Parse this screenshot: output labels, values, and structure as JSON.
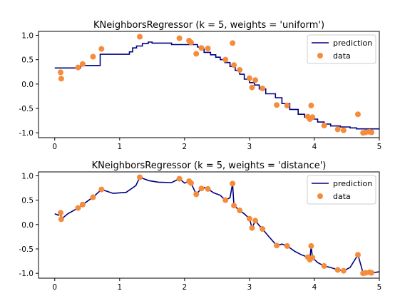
{
  "chart_data": [
    {
      "type": "line",
      "title": "KNeighborsRegressor (k = 5, weights = 'uniform')",
      "xlabel": "",
      "ylabel": "",
      "xlim": [
        -0.25,
        5.0
      ],
      "ylim": [
        -1.1,
        1.08
      ],
      "xticks": [
        "0",
        "1",
        "2",
        "3",
        "4",
        "5"
      ],
      "yticks": [
        "1.0",
        "0.5",
        "0.0",
        "-0.5",
        "-1.0"
      ],
      "grid": false,
      "legend": {
        "location": "top-right",
        "entries": [
          "prediction",
          "data"
        ]
      },
      "series": [
        {
          "name": "prediction",
          "kind": "line",
          "color": "#000080",
          "x": [
            0.0,
            0.4,
            0.4,
            0.7,
            0.7,
            1.15,
            1.15,
            1.2,
            1.2,
            1.26,
            1.26,
            1.35,
            1.35,
            1.44,
            1.44,
            1.5,
            1.5,
            1.8,
            1.8,
            2.2,
            2.2,
            2.25,
            2.25,
            2.3,
            2.3,
            2.4,
            2.4,
            2.48,
            2.48,
            2.55,
            2.55,
            2.62,
            2.62,
            2.7,
            2.7,
            2.78,
            2.78,
            2.85,
            2.85,
            2.92,
            2.92,
            3.0,
            3.0,
            3.08,
            3.08,
            3.15,
            3.15,
            3.25,
            3.25,
            3.4,
            3.4,
            3.5,
            3.5,
            3.62,
            3.62,
            3.75,
            3.75,
            3.85,
            3.85,
            3.95,
            3.95,
            4.05,
            4.05,
            4.15,
            4.15,
            4.25,
            4.25,
            4.4,
            4.4,
            4.55,
            4.55,
            4.65,
            4.65,
            5.0
          ],
          "y": [
            0.33,
            0.33,
            0.38,
            0.38,
            0.61,
            0.61,
            0.66,
            0.66,
            0.74,
            0.74,
            0.78,
            0.78,
            0.83,
            0.83,
            0.86,
            0.86,
            0.84,
            0.84,
            0.81,
            0.81,
            0.76,
            0.76,
            0.72,
            0.72,
            0.65,
            0.65,
            0.6,
            0.6,
            0.55,
            0.55,
            0.5,
            0.5,
            0.44,
            0.44,
            0.36,
            0.36,
            0.28,
            0.28,
            0.2,
            0.2,
            0.1,
            0.1,
            0.03,
            0.03,
            -0.02,
            -0.02,
            -0.1,
            -0.1,
            -0.2,
            -0.2,
            -0.28,
            -0.28,
            -0.4,
            -0.4,
            -0.52,
            -0.52,
            -0.62,
            -0.62,
            -0.68,
            -0.68,
            -0.72,
            -0.72,
            -0.78,
            -0.78,
            -0.82,
            -0.82,
            -0.86,
            -0.86,
            -0.88,
            -0.88,
            -0.9,
            -0.9,
            -0.92,
            -0.92
          ]
        },
        {
          "name": "data",
          "kind": "scatter",
          "color": "#f58c3c",
          "x": [
            0.09,
            0.1,
            0.36,
            0.43,
            0.59,
            0.72,
            1.31,
            1.92,
            2.07,
            2.1,
            2.18,
            2.26,
            2.36,
            2.63,
            2.74,
            2.76,
            2.85,
            3.0,
            3.04,
            3.09,
            3.2,
            3.42,
            3.58,
            3.9,
            3.93,
            3.95,
            3.97,
            4.15,
            4.36,
            4.45,
            4.67,
            4.75,
            4.79,
            4.85,
            4.88
          ],
          "y": [
            0.24,
            0.11,
            0.34,
            0.41,
            0.56,
            0.72,
            0.97,
            0.94,
            0.89,
            0.85,
            0.62,
            0.74,
            0.73,
            0.5,
            0.84,
            0.39,
            0.29,
            0.12,
            -0.07,
            0.08,
            -0.09,
            -0.43,
            -0.44,
            -0.67,
            -0.72,
            -0.44,
            -0.68,
            -0.85,
            -0.93,
            -0.95,
            -0.62,
            -1.0,
            -0.99,
            -0.98,
            -0.99
          ]
        }
      ]
    },
    {
      "type": "line",
      "title": "KNeighborsRegressor (k = 5, weights = 'distance')",
      "xlabel": "",
      "ylabel": "",
      "xlim": [
        -0.25,
        5.0
      ],
      "ylim": [
        -1.1,
        1.08
      ],
      "xticks": [
        "0",
        "1",
        "2",
        "3",
        "4",
        "5"
      ],
      "yticks": [
        "1.0",
        "0.5",
        "0.0",
        "-0.5",
        "-1.0"
      ],
      "grid": false,
      "legend": {
        "location": "top-right",
        "entries": [
          "prediction",
          "data"
        ]
      },
      "series": [
        {
          "name": "prediction",
          "kind": "line",
          "color": "#000080",
          "x": [
            0.0,
            0.06,
            0.09,
            0.1,
            0.2,
            0.36,
            0.43,
            0.59,
            0.72,
            0.9,
            1.1,
            1.25,
            1.31,
            1.45,
            1.6,
            1.8,
            1.92,
            2.0,
            2.07,
            2.1,
            2.18,
            2.26,
            2.3,
            2.36,
            2.45,
            2.55,
            2.63,
            2.7,
            2.74,
            2.76,
            2.85,
            2.92,
            3.0,
            3.04,
            3.09,
            3.15,
            3.2,
            3.3,
            3.42,
            3.5,
            3.58,
            3.7,
            3.8,
            3.9,
            3.93,
            3.95,
            3.97,
            4.05,
            4.15,
            4.25,
            4.36,
            4.45,
            4.55,
            4.67,
            4.72,
            4.75,
            4.79,
            4.85,
            4.88,
            5.0
          ],
          "y": [
            0.22,
            0.19,
            0.24,
            0.11,
            0.22,
            0.34,
            0.41,
            0.56,
            0.72,
            0.64,
            0.66,
            0.8,
            0.97,
            0.9,
            0.87,
            0.86,
            0.94,
            0.85,
            0.89,
            0.85,
            0.62,
            0.74,
            0.76,
            0.73,
            0.65,
            0.6,
            0.5,
            0.55,
            0.84,
            0.39,
            0.29,
            0.22,
            0.12,
            -0.07,
            0.08,
            -0.02,
            -0.09,
            -0.25,
            -0.43,
            -0.4,
            -0.44,
            -0.55,
            -0.62,
            -0.67,
            -0.72,
            -0.44,
            -0.68,
            -0.78,
            -0.85,
            -0.88,
            -0.93,
            -0.95,
            -0.88,
            -0.62,
            -0.85,
            -1.0,
            -0.99,
            -0.98,
            -0.99,
            -0.97
          ]
        },
        {
          "name": "data",
          "kind": "scatter",
          "color": "#f58c3c",
          "x": [
            0.09,
            0.1,
            0.36,
            0.43,
            0.59,
            0.72,
            1.31,
            1.92,
            2.07,
            2.1,
            2.18,
            2.26,
            2.36,
            2.63,
            2.74,
            2.76,
            2.85,
            3.0,
            3.04,
            3.09,
            3.2,
            3.42,
            3.58,
            3.9,
            3.93,
            3.95,
            3.97,
            4.15,
            4.36,
            4.45,
            4.67,
            4.75,
            4.79,
            4.85,
            4.88
          ],
          "y": [
            0.24,
            0.11,
            0.34,
            0.41,
            0.56,
            0.72,
            0.97,
            0.94,
            0.89,
            0.85,
            0.62,
            0.74,
            0.73,
            0.5,
            0.84,
            0.39,
            0.29,
            0.12,
            -0.07,
            0.08,
            -0.09,
            -0.43,
            -0.44,
            -0.67,
            -0.72,
            -0.44,
            -0.68,
            -0.85,
            -0.93,
            -0.95,
            -0.62,
            -1.0,
            -0.99,
            -0.98,
            -0.99
          ]
        }
      ]
    }
  ]
}
